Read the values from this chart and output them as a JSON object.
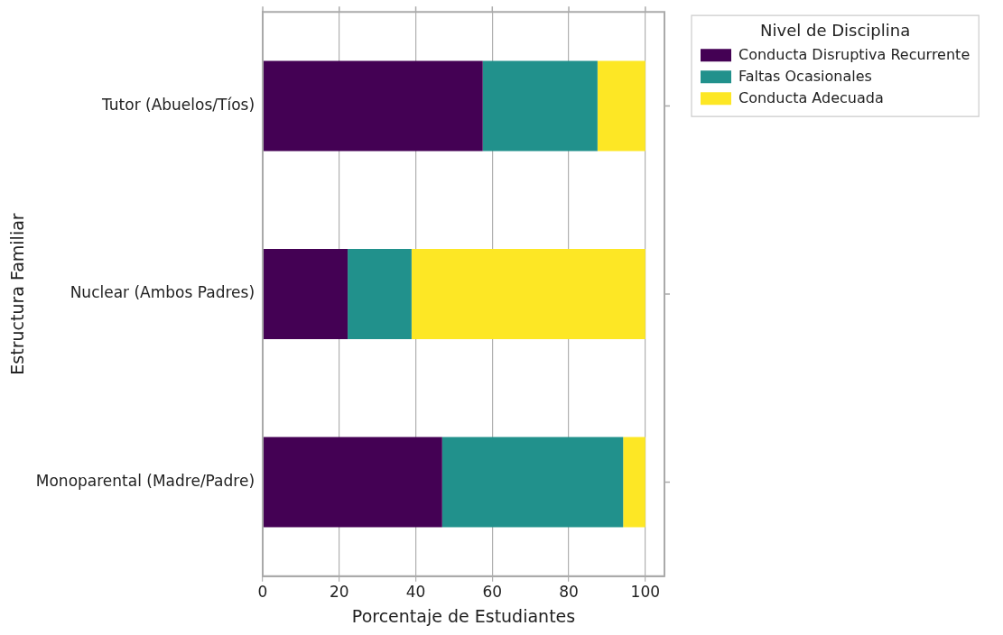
{
  "chart_data": {
    "type": "bar",
    "orientation": "horizontal",
    "stacked": true,
    "xlabel": "Porcentaje de Estudiantes",
    "ylabel": "Estructura Familiar",
    "legend_title": "Nivel de Disciplina",
    "categories": [
      "Tutor (Abuelos/Tíos)",
      "Nuclear (Ambos Padres)",
      "Monoparental (Madre/Padre)"
    ],
    "series": [
      {
        "name": "Conducta Disruptiva Recurrente",
        "color": "#440154",
        "values": [
          57.5,
          22.2,
          46.9
        ]
      },
      {
        "name": "Faltas Ocasionales",
        "color": "#21918c",
        "values": [
          30,
          16.7,
          47.3
        ]
      },
      {
        "name": "Conducta Adecuada",
        "color": "#fde725",
        "values": [
          12.5,
          61.1,
          5.8
        ]
      }
    ],
    "xlim": [
      0,
      105
    ],
    "xticks": [
      0,
      20,
      40,
      60,
      80,
      100
    ],
    "grid": "x",
    "legend": "top right"
  }
}
